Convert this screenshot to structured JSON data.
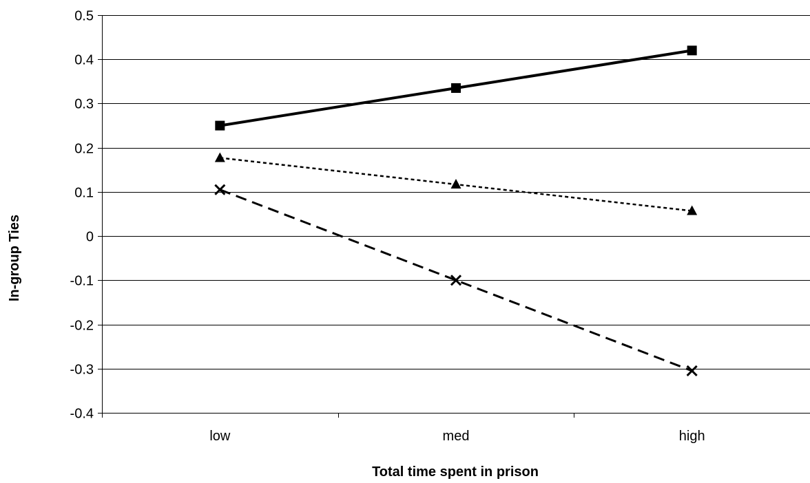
{
  "chart_data": {
    "type": "line",
    "title": "",
    "xlabel": "Total time spent in prison",
    "ylabel": "In-group Ties",
    "categories": [
      "low",
      "med",
      "high"
    ],
    "ylim": [
      -0.4,
      0.5
    ],
    "ytick_step": 0.1,
    "ytick_labels": [
      "-0.4",
      "-0.3",
      "-0.2",
      "-0.1",
      "0",
      "0.1",
      "0.2",
      "0.3",
      "0.4",
      "0.5"
    ],
    "grid": "horizontal",
    "legend": "none",
    "series": [
      {
        "style": "solid",
        "marker": "square",
        "color": "#000000",
        "values": [
          0.25,
          0.335,
          0.42
        ]
      },
      {
        "style": "dotted",
        "marker": "triangle",
        "color": "#000000",
        "values": [
          0.177,
          0.117,
          0.057
        ]
      },
      {
        "style": "dashed",
        "marker": "x",
        "color": "#000000",
        "values": [
          0.105,
          -0.1,
          -0.305
        ]
      }
    ]
  }
}
